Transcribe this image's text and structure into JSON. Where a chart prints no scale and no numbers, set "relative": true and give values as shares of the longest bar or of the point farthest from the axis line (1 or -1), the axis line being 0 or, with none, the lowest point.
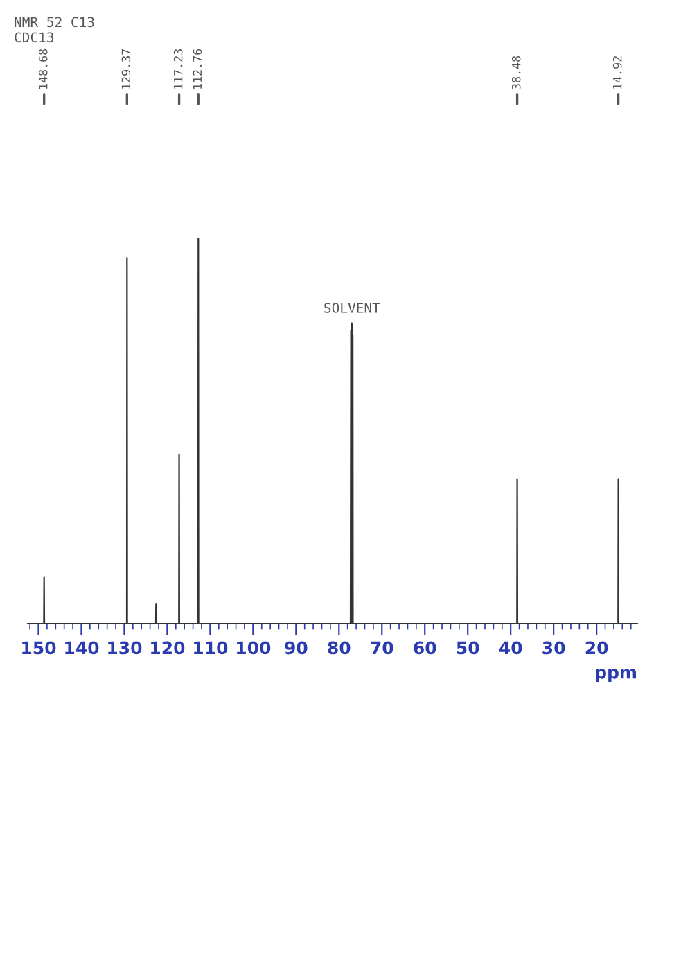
{
  "chart_data": {
    "type": "line",
    "relative": true,
    "xlabel": "ppm",
    "xlim": [
      152.5,
      10.5
    ],
    "xticks": [
      150,
      140,
      130,
      120,
      110,
      100,
      90,
      80,
      70,
      60,
      50,
      40,
      30,
      20
    ],
    "series": [
      {
        "color": "#333333",
        "x": [
          10.5,
          14.87,
          14.92,
          14.97,
          38.43,
          38.48,
          38.53,
          76.75,
          76.8,
          76.9,
          77.0,
          77.1,
          77.2,
          77.3,
          112.71,
          112.76,
          112.81,
          117.18,
          117.23,
          117.28,
          122.55,
          122.6,
          122.65,
          129.32,
          129.37,
          129.42,
          148.63,
          148.68,
          148.73,
          152.5
        ],
        "values": [
          0,
          0,
          0.375,
          0,
          0,
          0.375,
          0,
          0,
          0.75,
          0,
          0.78,
          0,
          0.76,
          0,
          0,
          1,
          0,
          0,
          0.44,
          0,
          0,
          0.05,
          0,
          0,
          0.95,
          0,
          0,
          0.12,
          0,
          0
        ]
      }
    ],
    "grid": false,
    "marker": "none",
    "line_style": "solid",
    "annotations": [
      {
        "text": "14.92",
        "x": 14.92
      },
      {
        "text": "38.48",
        "x": 38.48
      },
      {
        "text": "112.76",
        "x": 112.76
      },
      {
        "text": "117.23",
        "x": 117.23
      },
      {
        "text": "129.37",
        "x": 129.37
      },
      {
        "text": "148.68",
        "x": 148.68
      },
      {
        "text": "SOLVENT",
        "x": 77.0,
        "y": 0.78
      },
      "NMR 52 C13",
      "CDC13"
    ]
  }
}
